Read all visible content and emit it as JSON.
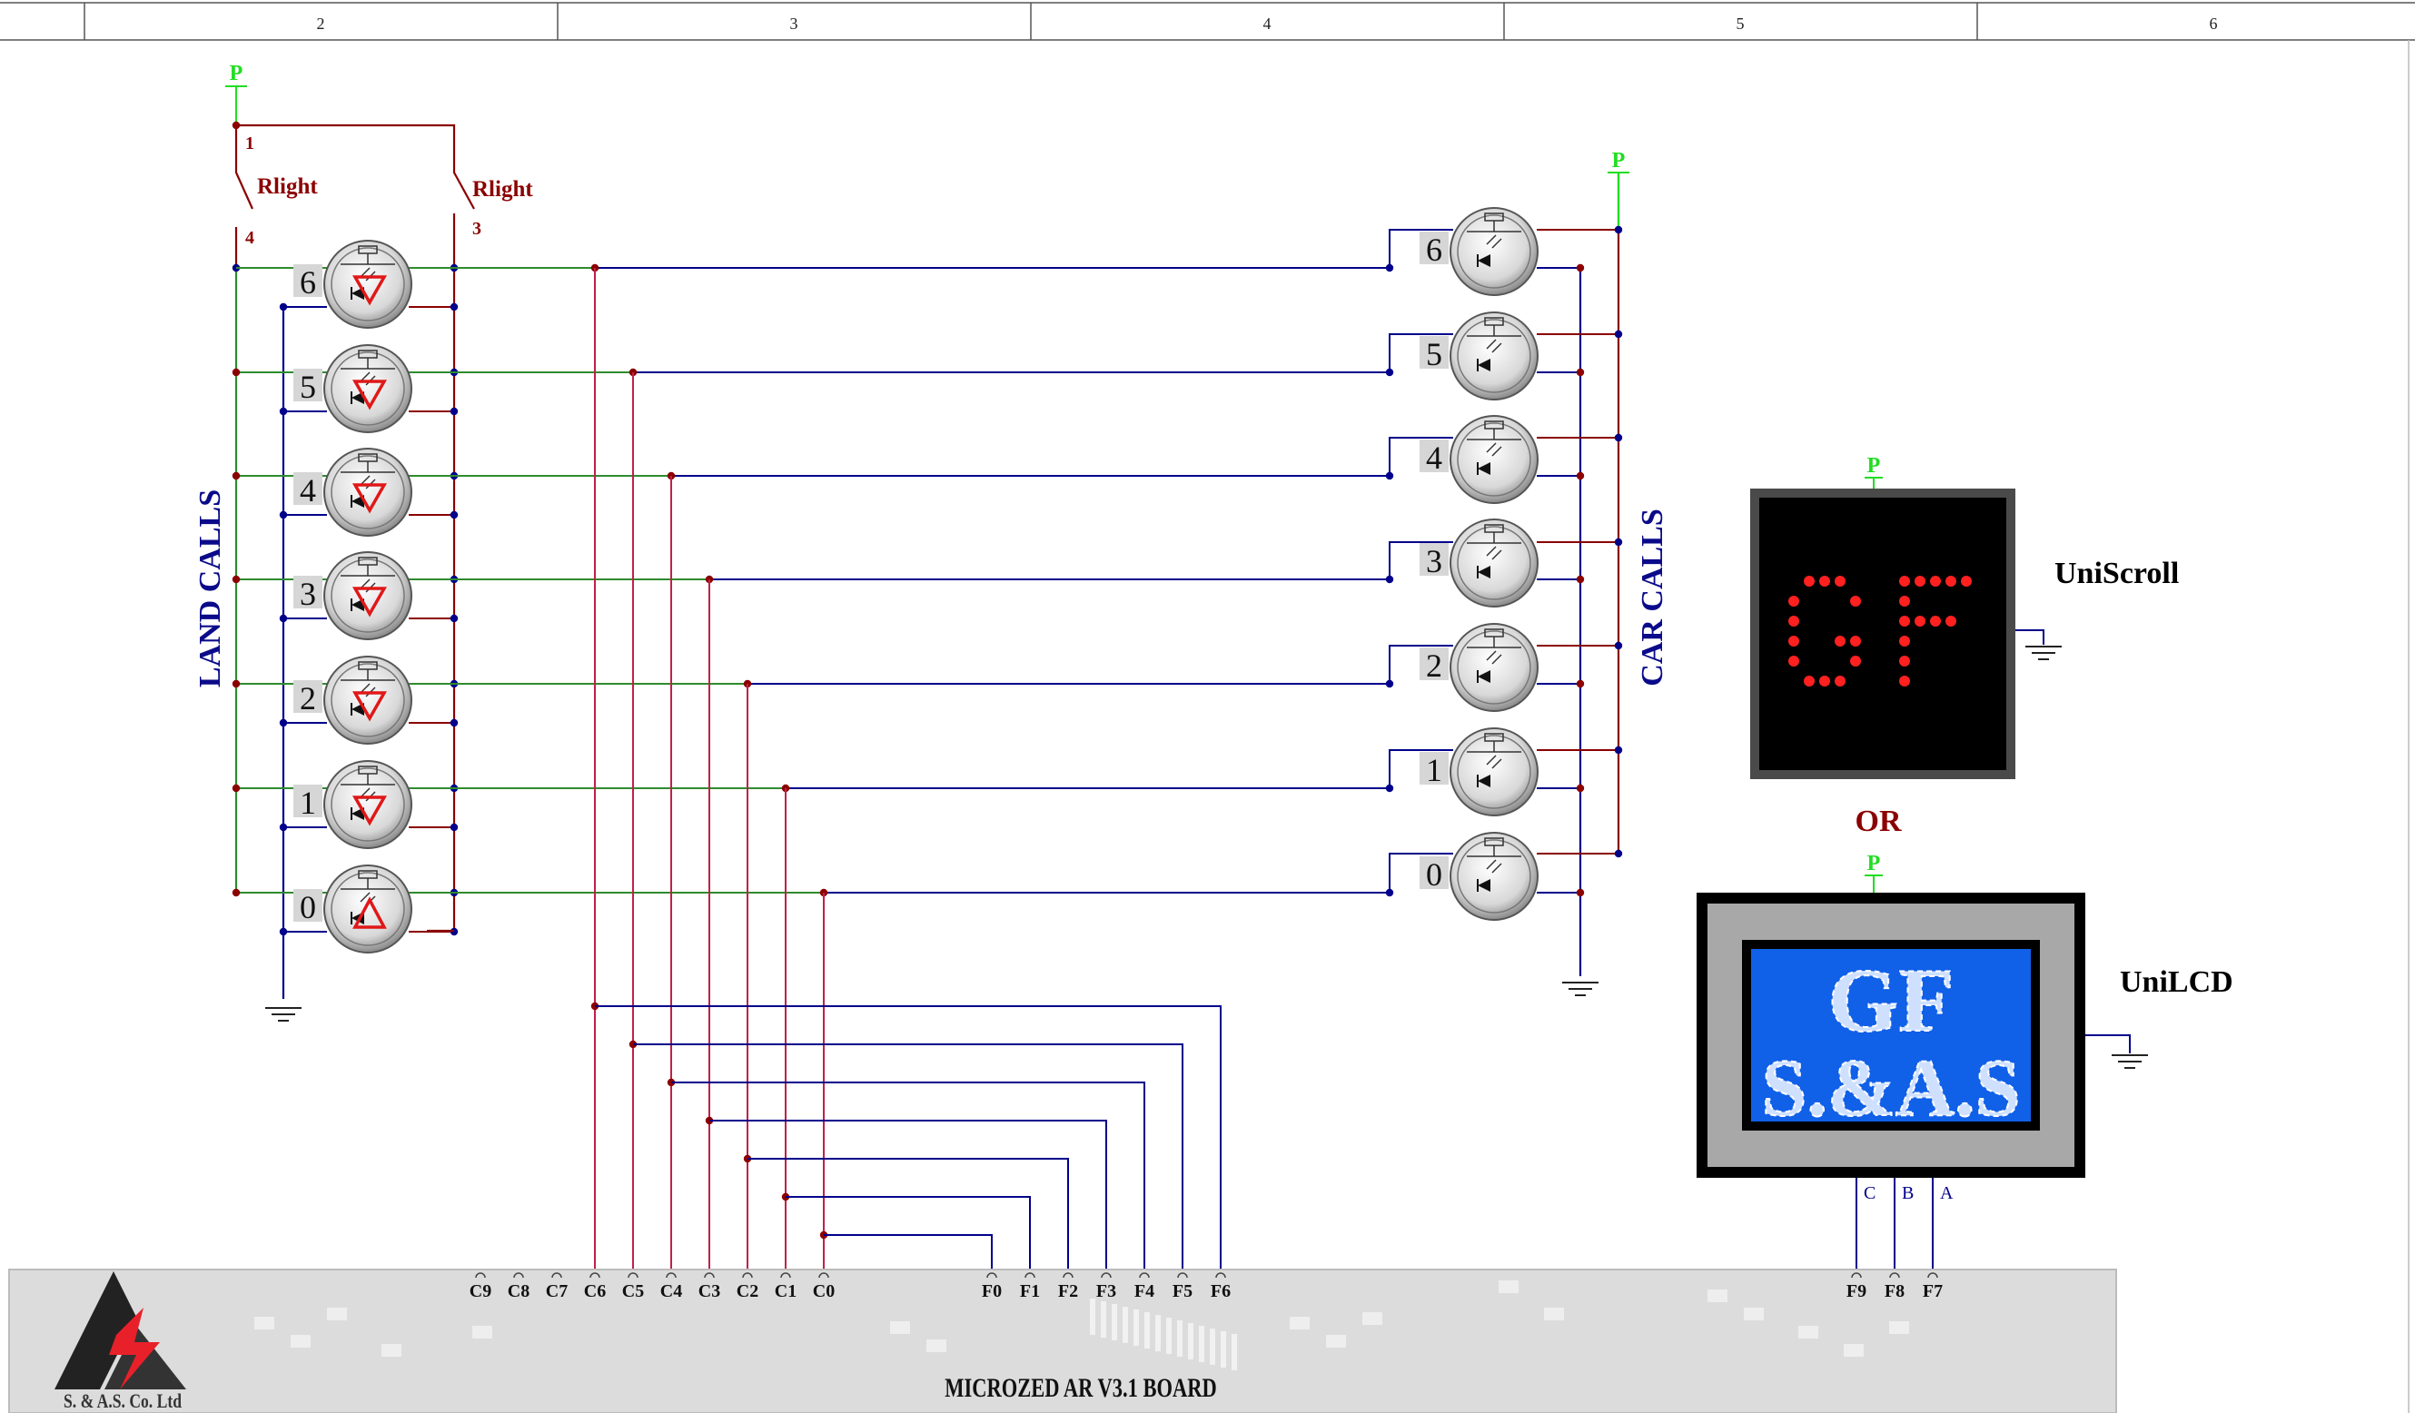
{
  "ruler": {
    "columns": [
      "2",
      "3",
      "4",
      "5",
      "6"
    ]
  },
  "power_label": "P",
  "relay": {
    "name_left": "Rlight",
    "name_right": "Rlight",
    "pin1": "1",
    "pin4": "4",
    "pin3": "3"
  },
  "land_calls": {
    "title": "LAND CALLS",
    "buttons": [
      "6",
      "5",
      "4",
      "3",
      "2",
      "1",
      "0"
    ]
  },
  "car_calls": {
    "title": "CAR CALLS",
    "buttons": [
      "6",
      "5",
      "4",
      "3",
      "2",
      "1",
      "0"
    ]
  },
  "uniscroll": {
    "label": "UniScroll",
    "display_text": "GF"
  },
  "or_label": "OR",
  "unilcd": {
    "label": "UniLCD",
    "line1": "GF",
    "line2": "S.&A.S",
    "pins": [
      "C",
      "B",
      "A"
    ]
  },
  "board": {
    "title": "MICROZED AR V3.1 BOARD",
    "c_pins": [
      "C9",
      "C8",
      "C7",
      "C6",
      "C5",
      "C4",
      "C3",
      "C2",
      "C1",
      "C0"
    ],
    "f_pins": [
      "F0",
      "F1",
      "F2",
      "F3",
      "F4",
      "F5",
      "F6"
    ],
    "f_pins_right": [
      "F9",
      "F8",
      "F7"
    ],
    "logo_text": "S. & A.S. Co. Ltd"
  },
  "colors": {
    "power_green": "#22dd22",
    "wire_red": "#8b0000",
    "wire_blue": "#00008b",
    "wire_green": "#2e8b2e",
    "wire_pink": "#c0204a",
    "title_blue": "#0a0a8a",
    "board_gray": "#dcdcdc",
    "led_red": "#ff2020",
    "lcd_blue": "#1060e8"
  }
}
